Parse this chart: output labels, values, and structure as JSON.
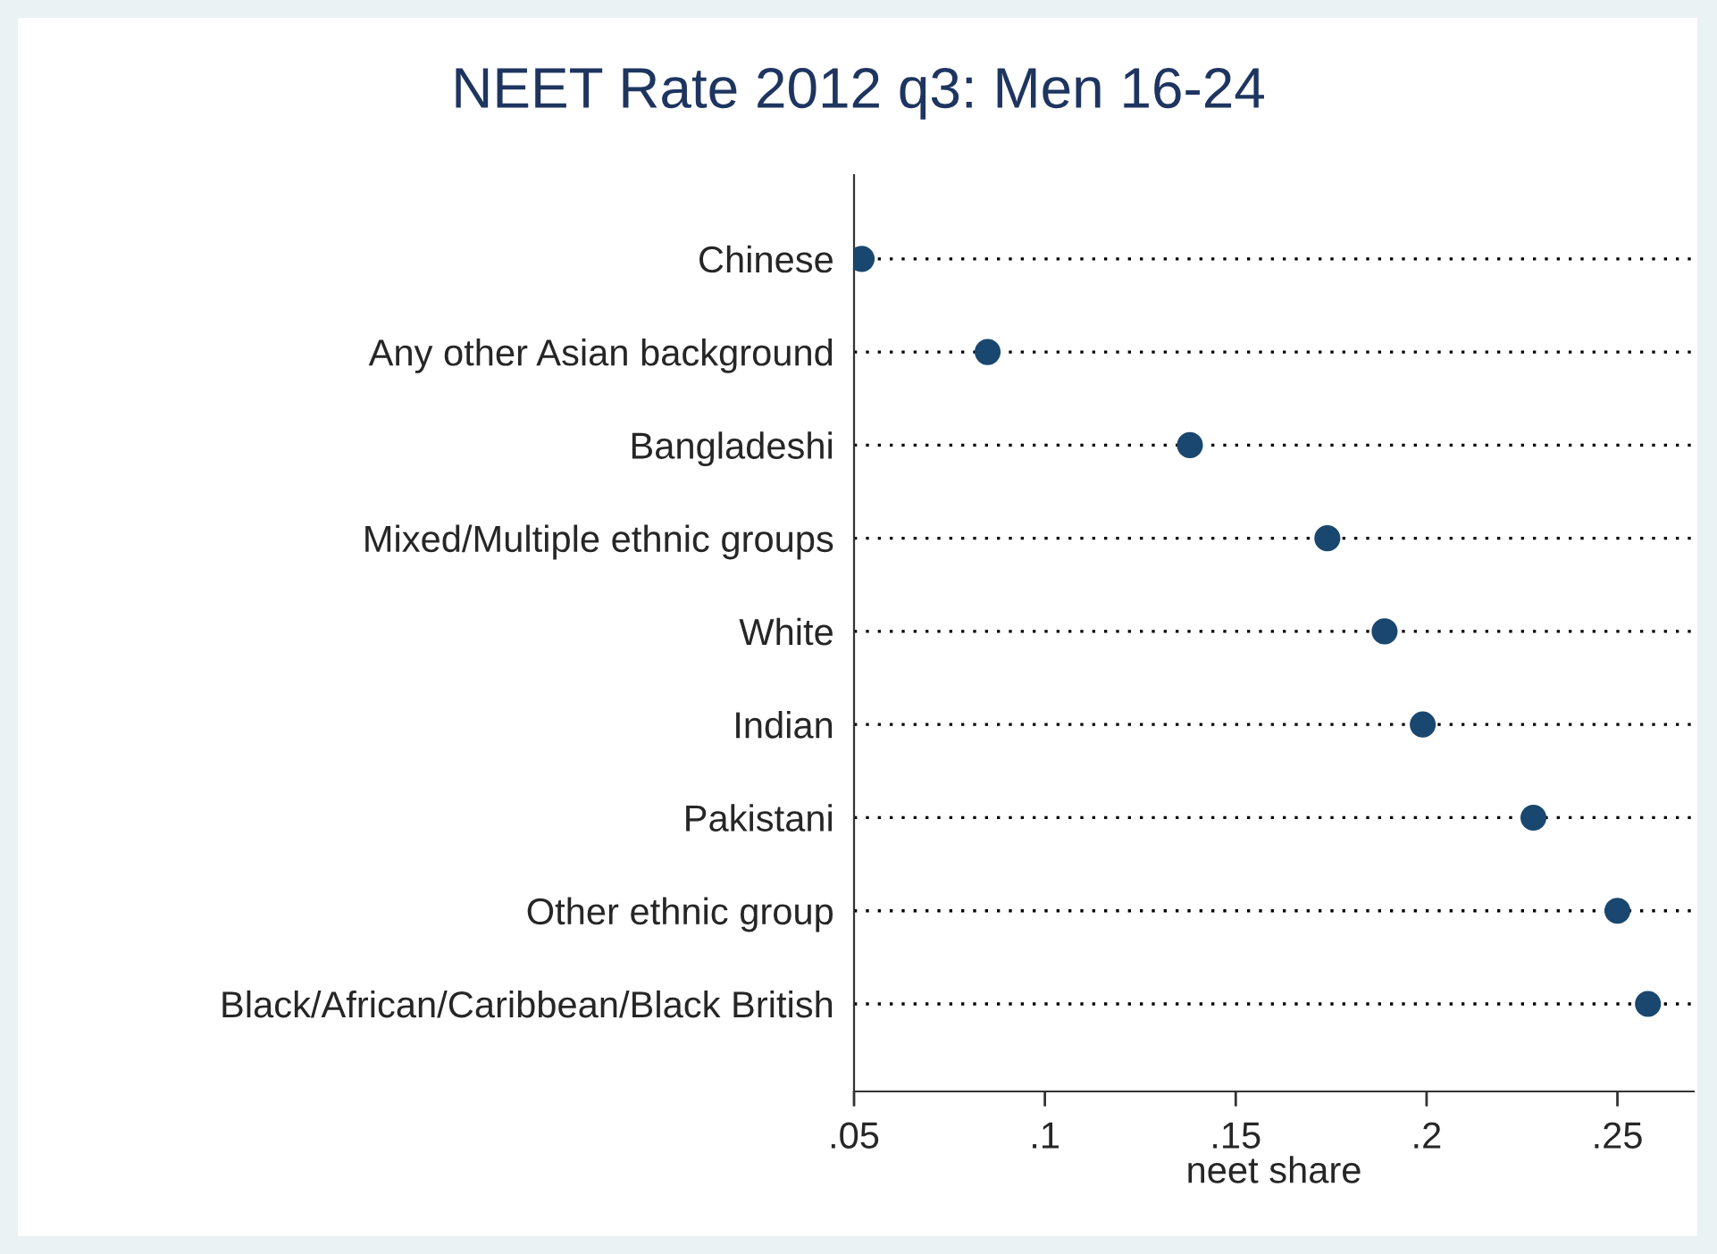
{
  "chart_data": {
    "type": "scatter",
    "orientation": "horizontal",
    "title": "NEET Rate 2012 q3: Men 16-24",
    "xlabel": "neet share",
    "categories": [
      "Chinese",
      "Any other Asian background",
      "Bangladeshi",
      "Mixed/Multiple ethnic groups",
      "White",
      "Indian",
      "Pakistani",
      "Other ethnic group",
      "Black/African/Caribbean/Black British"
    ],
    "series": [
      {
        "color": "#1a476f",
        "values": [
          0.052,
          0.085,
          0.138,
          0.174,
          0.189,
          0.199,
          0.228,
          0.25,
          0.258
        ]
      }
    ],
    "xlim": [
      0.05,
      0.27
    ],
    "xticks": [
      {
        "value": 0.05,
        "label": ".05"
      },
      {
        "value": 0.1,
        "label": ".1"
      },
      {
        "value": 0.15,
        "label": ".15"
      },
      {
        "value": 0.2,
        "label": ".2"
      },
      {
        "value": 0.25,
        "label": ".25"
      }
    ],
    "grid": "y",
    "marker": "circle",
    "legend": false
  }
}
